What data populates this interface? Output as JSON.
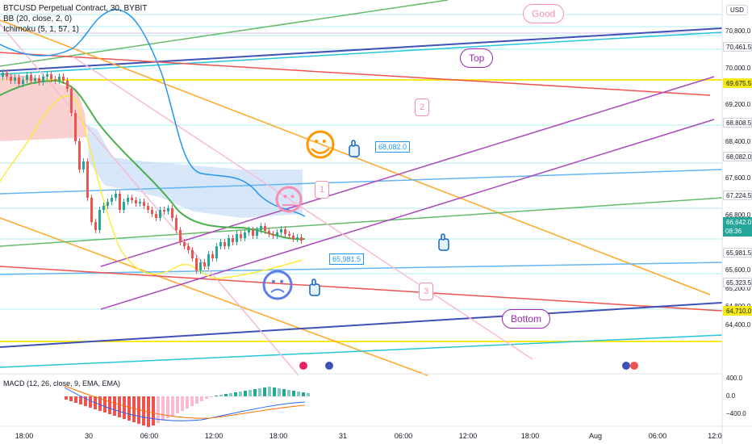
{
  "header": {
    "symbol_line": "BTCUSD Perpetual Contract, 30, BYBIT",
    "bb_line": "BB (20, close, 2, 0)",
    "ichimoku_line": "Ichimoku (5, 1, 57, 1)"
  },
  "axis": {
    "currency": "USD",
    "price_labels": [
      {
        "text": "70,800.0",
        "value": 70800
      },
      {
        "text": "70,000.0",
        "value": 70000
      },
      {
        "text": "69,200.0",
        "value": 69200
      },
      {
        "text": "68,400.0",
        "value": 68400
      },
      {
        "text": "67,600.0",
        "value": 67600
      },
      {
        "text": "66,800.0",
        "value": 66800
      },
      {
        "text": "65,600.0",
        "value": 65600
      },
      {
        "text": "65,200.0",
        "value": 65200
      },
      {
        "text": "64,800.0",
        "value": 64800
      },
      {
        "text": "64,400.0",
        "value": 64400
      }
    ],
    "price_tags": [
      {
        "text": "70,461.5",
        "value": 70461.5,
        "color": "#ffffff",
        "border": "#d1d4dc"
      },
      {
        "text": "69,675.5",
        "value": 69675.5,
        "color": "#f7ea1c",
        "border": "#f7ea1c"
      },
      {
        "text": "68,808.5",
        "value": 68808.5,
        "color": "#ffffff",
        "border": "#d1d4dc"
      },
      {
        "text": "68,082.0",
        "value": 68082,
        "color": "#ffffff",
        "border": "#d1d4dc"
      },
      {
        "text": "67,224.5",
        "value": 67224.5,
        "color": "#ffffff",
        "border": "#d1d4dc"
      },
      {
        "text": "66,642.0",
        "value": 66642,
        "color": "#26a69a",
        "border": "#26a69a",
        "sub": "08:36"
      },
      {
        "text": "65,981.5",
        "value": 65981.5,
        "color": "#ffffff",
        "border": "#d1d4dc"
      },
      {
        "text": "65,323.5",
        "value": 65323.5,
        "color": "#ffffff",
        "border": "#d1d4dc"
      },
      {
        "text": "64,710.0",
        "value": 64710,
        "color": "#f7ea1c",
        "border": "#f7ea1c"
      }
    ],
    "time_labels": [
      "18:00",
      "30",
      "06:00",
      "12:00",
      "18:00",
      "31",
      "06:00",
      "12:00",
      "18:00",
      "Aug",
      "06:00",
      "12:0"
    ]
  },
  "annotations": {
    "good": "Good",
    "top": "Top",
    "bottom": "Bottom",
    "box_68082": "68,082.0",
    "box_65981": "65,981.5",
    "wave_2": "2",
    "wave_1": "1",
    "wave_3": "3"
  },
  "macd": {
    "legend": "MACD (12, 26, close, 9, EMA, EMA)",
    "ticks": [
      {
        "text": "400.0",
        "value": 400
      },
      {
        "text": "0.0",
        "value": 0
      },
      {
        "text": "−400.0",
        "value": -400
      }
    ]
  },
  "colors": {
    "up": "#26a69a",
    "down": "#ef5350",
    "bb_basis": "#4caf50",
    "bb_upper": "#2196f3",
    "ichimoku_conv": "#ffeb3b",
    "cloud_red": "#f7c6c6",
    "cloud_blue": "#c6dcf7"
  }
}
